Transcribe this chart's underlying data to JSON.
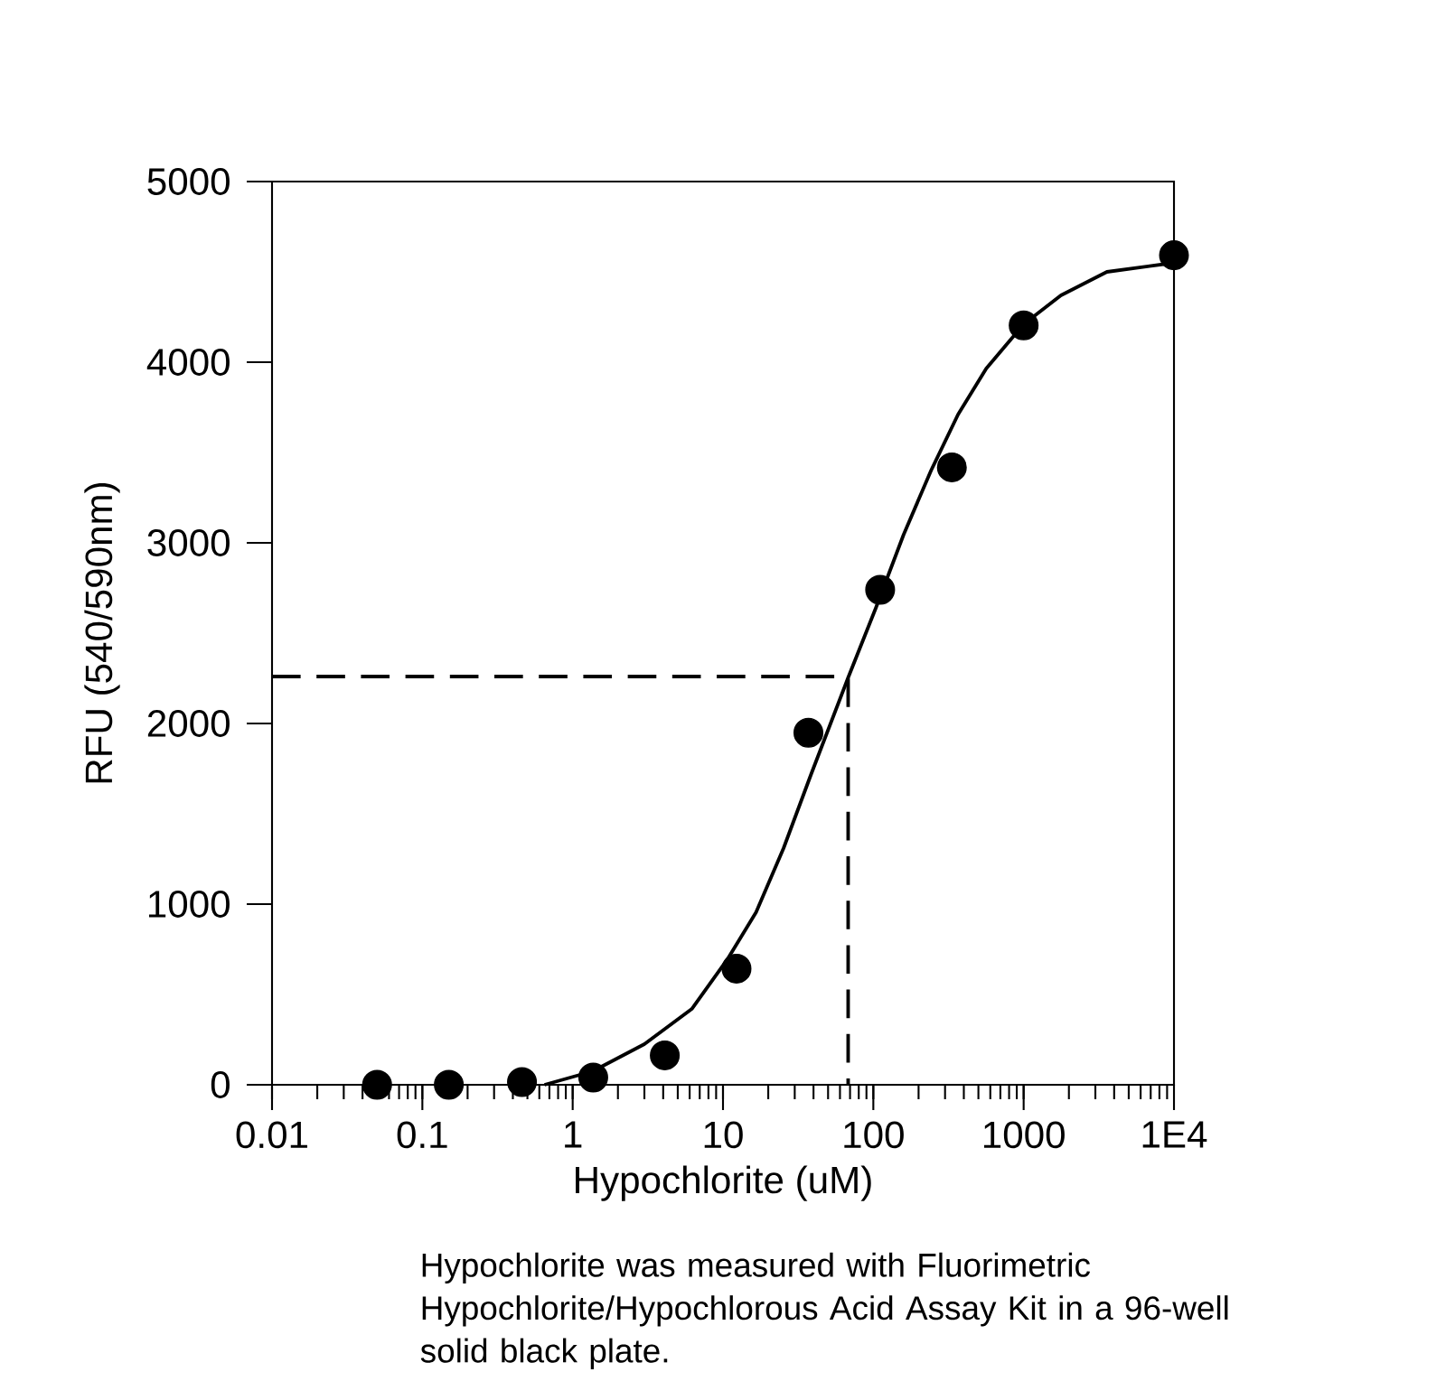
{
  "chart_data": {
    "type": "scatter",
    "xlabel": "Hypochlorite (uM)",
    "ylabel": "RFU (540/590nm)",
    "log": "x",
    "xlim": [
      0.01,
      10000
    ],
    "xticks": [
      0.01,
      0.1,
      1,
      10,
      100,
      1000,
      {
        "value": 10000,
        "label": "1E4"
      }
    ],
    "ylim": [
      0,
      5000
    ],
    "yticks": [
      0,
      1000,
      2000,
      3000,
      4000,
      5000
    ],
    "grid": false,
    "annotations": [
      "Hypochlorite was measured with Fluorimetric Hypochlorite/Hypochlorous Acid Assay Kit in a 96-well solid black plate."
    ],
    "series": [
      {
        "type": "scatter",
        "color": "#000000",
        "marker": "circle",
        "x": [
          0.05,
          0.15,
          0.46,
          1.37,
          4.1,
          12.3,
          37,
          111,
          333,
          1000,
          10000
        ],
        "values": [
          0,
          0,
          15,
          40,
          163,
          643,
          1949,
          2740,
          3418,
          4204,
          4592
        ]
      },
      {
        "type": "line",
        "color": "#000000",
        "line_style": "solid",
        "x": [
          0.65,
          1.36,
          3.0,
          6.2,
          10.8,
          16.6,
          25.3,
          38.6,
          68.1,
          104,
          159,
          242,
          366,
          564,
          1000,
          1770,
          3580,
          10000
        ],
        "values": [
          0,
          75,
          225,
          420,
          700,
          955,
          1310,
          1720,
          2255,
          2640,
          3045,
          3400,
          3710,
          3965,
          4210,
          4370,
          4500,
          4550
        ]
      },
      {
        "type": "line",
        "color": "#000000",
        "line_style": "dashed",
        "x": [
          0.01,
          68,
          68
        ],
        "values": [
          2260,
          2260,
          0
        ]
      }
    ]
  }
}
